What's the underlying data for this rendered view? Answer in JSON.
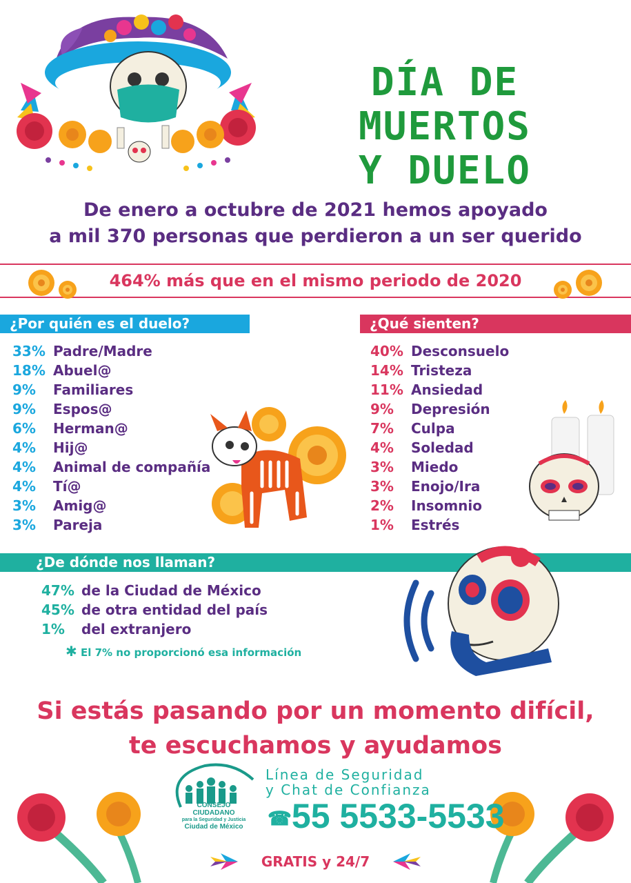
{
  "header": {
    "title_line1": "DÍA DE MUERTOS",
    "title_line2": "Y DUELO"
  },
  "intro": {
    "line1": "De enero a octubre de 2021 hemos apoyado",
    "prefix": "a ",
    "highlight": "mil 370",
    "suffix": " personas que perdieron a un ser querido"
  },
  "comparison": "464% más que en el mismo periodo de 2020",
  "grief_for": {
    "title": "¿Por quién es el duelo?",
    "items": [
      {
        "pct": "33%",
        "label": "Padre/Madre"
      },
      {
        "pct": "18%",
        "label": "Abuel@"
      },
      {
        "pct": "9%",
        "label": "Familiares"
      },
      {
        "pct": "9%",
        "label": "Espos@"
      },
      {
        "pct": "6%",
        "label": "Herman@"
      },
      {
        "pct": "4%",
        "label": "Hij@"
      },
      {
        "pct": "4%",
        "label": "Animal de compañía"
      },
      {
        "pct": "4%",
        "label": "Tí@"
      },
      {
        "pct": "3%",
        "label": "Amig@"
      },
      {
        "pct": "3%",
        "label": "Pareja"
      }
    ]
  },
  "feelings": {
    "title": "¿Qué sienten?",
    "items": [
      {
        "pct": "40%",
        "label": "Desconsuelo"
      },
      {
        "pct": "14%",
        "label": "Tristeza"
      },
      {
        "pct": "11%",
        "label": "Ansiedad"
      },
      {
        "pct": "9%",
        "label": "Depresión"
      },
      {
        "pct": "7%",
        "label": "Culpa"
      },
      {
        "pct": "4%",
        "label": "Soledad"
      },
      {
        "pct": "3%",
        "label": "Miedo"
      },
      {
        "pct": "3%",
        "label": "Enojo/Ira"
      },
      {
        "pct": "2%",
        "label": "Insomnio"
      },
      {
        "pct": "1%",
        "label": "Estrés"
      }
    ]
  },
  "origin": {
    "title": "¿De dónde nos llaman?",
    "items": [
      {
        "pct": "47%",
        "label": "de la Ciudad de México"
      },
      {
        "pct": "45%",
        "label": "de otra entidad del país"
      },
      {
        "pct": "1%",
        "label": "del extranjero"
      }
    ],
    "note": "El 7% no proporcionó esa información"
  },
  "cta": {
    "line1": "Si estás pasando por un momento difícil,",
    "line2": "te escuchamos y ayudamos"
  },
  "org": {
    "line1": "CONSEJO CIUDADANO",
    "line2": "para la Seguridad y Justicia",
    "line3": "Ciudad de México"
  },
  "contact": {
    "line1": "Línea de Seguridad",
    "line2": "y Chat de Confianza",
    "phone": "55 5533-5533",
    "availability": "GRATIS y 24/7"
  },
  "colors": {
    "green": "#1f9a3c",
    "purple": "#5a2d82",
    "pink": "#d9365e",
    "blue": "#1aa7de",
    "teal": "#1fb0a0",
    "marigold": "#f7a21b"
  }
}
